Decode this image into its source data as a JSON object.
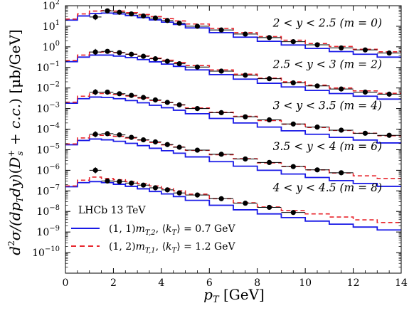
{
  "chart_data": {
    "type": "line",
    "title": "",
    "xlabel": "p_T [GeV]",
    "ylabel": "d²σ/(dp_T dy)(D_s⁺ + c.c.) [μb/GeV]",
    "xlim": [
      0,
      14
    ],
    "ylim_log10": [
      -11,
      2
    ],
    "y_scale": "log",
    "x_ticks": [
      0,
      2,
      4,
      6,
      8,
      10,
      12,
      14
    ],
    "y_ticks": [
      "10^2",
      "10^1",
      "10^0",
      "10^-1",
      "10^-2",
      "10^-3",
      "10^-4",
      "10^-5",
      "10^-6",
      "10^-7",
      "10^-8",
      "10^-9",
      "10^-10"
    ],
    "annotation": "LHCb 13 TeV",
    "colors": {
      "blue": "#1a1ae6",
      "red": "#e8252c"
    },
    "legend_placement": "bottom-left",
    "legend": [
      {
        "label": "(1,1) m_{T,2}, ⟨k_T⟩ = 0.7 GeV",
        "style": "solid",
        "color": "#1a1ae6"
      },
      {
        "label": "(1,2) m_{T,1}, ⟨k_T⟩ = 1.2 GeV",
        "style": "dashed",
        "color": "#e8252c"
      }
    ],
    "bin_edges": [
      0,
      0.5,
      1,
      1.5,
      2,
      2.5,
      3,
      3.5,
      4,
      4.5,
      5,
      6,
      7,
      8,
      9,
      10,
      11,
      12,
      13,
      14
    ],
    "rapidity_bins": [
      {
        "label": "2 < y < 2.5 (m = 0)",
        "m": 0,
        "blue_log10": [
          1.3,
          1.5,
          1.62,
          1.64,
          1.6,
          1.52,
          1.42,
          1.31,
          1.2,
          1.09,
          0.92,
          0.69,
          0.47,
          0.27,
          0.09,
          -0.08,
          -0.23,
          -0.36,
          -0.5
        ],
        "red_log10": [
          1.35,
          1.6,
          1.74,
          1.76,
          1.74,
          1.66,
          1.57,
          1.47,
          1.37,
          1.26,
          1.11,
          0.9,
          0.69,
          0.5,
          0.32,
          0.16,
          0.02,
          -0.12,
          -0.24
        ],
        "data": [
          {
            "x": 1.25,
            "log10": 1.45
          },
          {
            "x": 1.75,
            "log10": 1.75
          },
          {
            "x": 2.25,
            "log10": 1.68
          },
          {
            "x": 2.75,
            "log10": 1.6
          },
          {
            "x": 3.25,
            "log10": 1.5
          },
          {
            "x": 3.75,
            "log10": 1.4
          },
          {
            "x": 4.25,
            "log10": 1.28
          },
          {
            "x": 4.75,
            "log10": 1.15
          },
          {
            "x": 5.5,
            "log10": 1.0
          },
          {
            "x": 6.5,
            "log10": 0.82
          },
          {
            "x": 7.5,
            "log10": 0.62
          },
          {
            "x": 8.5,
            "log10": 0.45
          },
          {
            "x": 9.5,
            "log10": 0.25
          },
          {
            "x": 10.5,
            "log10": 0.1
          },
          {
            "x": 11.5,
            "log10": -0.05
          },
          {
            "x": 12.5,
            "log10": -0.15
          },
          {
            "x": 13.5,
            "log10": -0.3
          }
        ]
      },
      {
        "label": "2.5 < y < 3 (m = 2)",
        "m": 2,
        "blue_log10": [
          -0.72,
          -0.5,
          -0.4,
          -0.4,
          -0.45,
          -0.52,
          -0.62,
          -0.73,
          -0.84,
          -0.95,
          -1.12,
          -1.35,
          -1.57,
          -1.77,
          -1.95,
          -2.12,
          -2.27,
          -2.4,
          -2.54
        ],
        "red_log10": [
          -0.67,
          -0.4,
          -0.26,
          -0.25,
          -0.28,
          -0.36,
          -0.45,
          -0.55,
          -0.65,
          -0.76,
          -0.91,
          -1.12,
          -1.33,
          -1.52,
          -1.7,
          -1.86,
          -2.0,
          -2.14,
          -2.26
        ],
        "data": [
          {
            "x": 1.25,
            "log10": -0.25
          },
          {
            "x": 1.75,
            "log10": -0.22
          },
          {
            "x": 2.25,
            "log10": -0.28
          },
          {
            "x": 2.75,
            "log10": -0.36
          },
          {
            "x": 3.25,
            "log10": -0.46
          },
          {
            "x": 3.75,
            "log10": -0.58
          },
          {
            "x": 4.25,
            "log10": -0.7
          },
          {
            "x": 4.75,
            "log10": -0.82
          },
          {
            "x": 5.5,
            "log10": -0.98
          },
          {
            "x": 6.5,
            "log10": -1.18
          },
          {
            "x": 7.5,
            "log10": -1.38
          },
          {
            "x": 8.5,
            "log10": -1.55
          },
          {
            "x": 9.5,
            "log10": -1.75
          },
          {
            "x": 10.5,
            "log10": -1.9
          },
          {
            "x": 11.5,
            "log10": -2.05
          },
          {
            "x": 12.5,
            "log10": -2.2
          },
          {
            "x": 13.5,
            "log10": -2.3
          }
        ]
      },
      {
        "label": "3 < y < 3.5 (m = 4)",
        "m": 4,
        "blue_log10": [
          -2.74,
          -2.52,
          -2.44,
          -2.46,
          -2.52,
          -2.61,
          -2.72,
          -2.84,
          -2.96,
          -3.08,
          -3.25,
          -3.48,
          -3.7,
          -3.9,
          -4.08,
          -4.25,
          -4.4,
          -4.53,
          -4.67
        ],
        "red_log10": [
          -2.69,
          -2.4,
          -2.27,
          -2.27,
          -2.31,
          -2.39,
          -2.49,
          -2.6,
          -2.71,
          -2.82,
          -2.97,
          -3.18,
          -3.38,
          -3.58,
          -3.76,
          -3.92,
          -4.06,
          -4.2,
          -4.32
        ],
        "data": [
          {
            "x": 1.25,
            "log10": -2.2
          },
          {
            "x": 1.75,
            "log10": -2.2
          },
          {
            "x": 2.25,
            "log10": -2.28
          },
          {
            "x": 2.75,
            "log10": -2.36
          },
          {
            "x": 3.25,
            "log10": -2.46
          },
          {
            "x": 3.75,
            "log10": -2.58
          },
          {
            "x": 4.25,
            "log10": -2.7
          },
          {
            "x": 4.75,
            "log10": -2.82
          },
          {
            "x": 5.5,
            "log10": -3.0
          },
          {
            "x": 6.5,
            "log10": -3.2
          },
          {
            "x": 7.5,
            "log10": -3.4
          },
          {
            "x": 8.5,
            "log10": -3.55
          },
          {
            "x": 9.5,
            "log10": -3.75
          },
          {
            "x": 10.5,
            "log10": -3.9
          },
          {
            "x": 11.5,
            "log10": -4.05
          },
          {
            "x": 12.5,
            "log10": -4.2
          },
          {
            "x": 13.5,
            "log10": -4.3
          }
        ]
      },
      {
        "label": "3.5 < y < 4 (m = 6)",
        "m": 6,
        "blue_log10": [
          -4.76,
          -4.55,
          -4.48,
          -4.52,
          -4.59,
          -4.69,
          -4.8,
          -4.93,
          -5.05,
          -5.17,
          -5.35,
          -5.58,
          -5.8,
          -6.0,
          -6.18,
          -6.35,
          -6.5,
          -6.64,
          -6.78
        ],
        "red_log10": [
          -4.72,
          -4.43,
          -4.3,
          -4.3,
          -4.35,
          -4.43,
          -4.53,
          -4.64,
          -4.76,
          -4.87,
          -5.03,
          -5.24,
          -5.44,
          -5.64,
          -5.82,
          -5.98,
          -6.13,
          -6.27,
          -6.4
        ],
        "data": [
          {
            "x": 1.25,
            "log10": -4.25
          },
          {
            "x": 1.75,
            "log10": -4.22
          },
          {
            "x": 2.25,
            "log10": -4.28
          },
          {
            "x": 2.75,
            "log10": -4.4
          },
          {
            "x": 3.25,
            "log10": -4.52
          },
          {
            "x": 3.75,
            "log10": -4.62
          },
          {
            "x": 4.25,
            "log10": -4.75
          },
          {
            "x": 4.75,
            "log10": -4.88
          },
          {
            "x": 5.5,
            "log10": -5.02
          },
          {
            "x": 6.5,
            "log10": -5.22
          },
          {
            "x": 7.5,
            "log10": -5.45
          },
          {
            "x": 8.5,
            "log10": -5.62
          },
          {
            "x": 9.5,
            "log10": -5.82
          },
          {
            "x": 10.5,
            "log10": -5.98
          },
          {
            "x": 11.5,
            "log10": -6.12
          }
        ]
      },
      {
        "label": "4 < y < 4.5 (m = 8)",
        "m": 8,
        "blue_log10": [
          -6.8,
          -6.6,
          -6.55,
          -6.6,
          -6.68,
          -6.78,
          -6.9,
          -7.03,
          -7.15,
          -7.28,
          -7.46,
          -7.7,
          -7.92,
          -8.12,
          -8.3,
          -8.47,
          -8.62,
          -8.76,
          -8.9
        ],
        "red_log10": [
          -6.76,
          -6.48,
          -6.33,
          -6.4,
          -6.46,
          -6.55,
          -6.65,
          -6.76,
          -6.88,
          -7.0,
          -7.16,
          -7.38,
          -7.58,
          -7.78,
          -7.96,
          -8.12,
          -8.27,
          -8.41,
          -8.54
        ],
        "data": [
          {
            "x": 1.25,
            "log10": -6.0
          },
          {
            "x": 1.75,
            "log10": -6.52
          },
          {
            "x": 2.25,
            "log10": -6.55
          },
          {
            "x": 2.75,
            "log10": -6.62
          },
          {
            "x": 3.25,
            "log10": -6.72
          },
          {
            "x": 3.75,
            "log10": -6.85
          },
          {
            "x": 4.25,
            "log10": -6.95
          },
          {
            "x": 4.75,
            "log10": -7.1
          },
          {
            "x": 5.5,
            "log10": -7.2
          },
          {
            "x": 6.5,
            "log10": -7.38
          },
          {
            "x": 7.5,
            "log10": -7.6
          },
          {
            "x": 8.5,
            "log10": -7.8
          },
          {
            "x": 9.5,
            "log10": -8.05
          }
        ]
      }
    ],
    "data_y_error_dex": 0.07
  }
}
